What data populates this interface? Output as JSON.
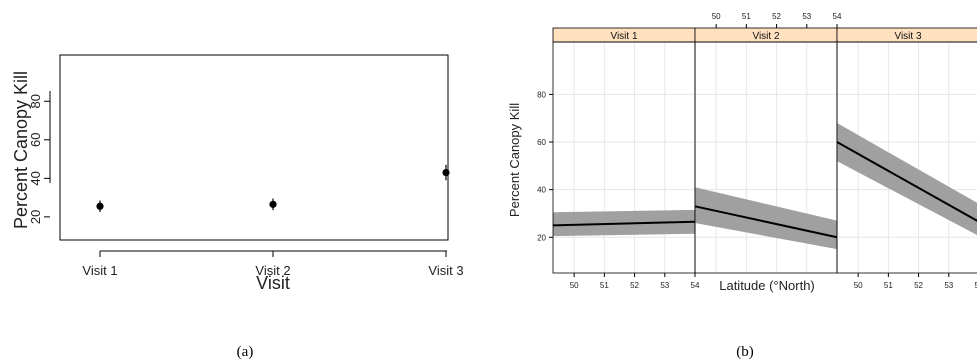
{
  "panel_labels": {
    "a": "(a)",
    "b": "(b)"
  },
  "chart_data": [
    {
      "type": "scatter",
      "panel": "a",
      "title": "",
      "xlabel": "Visit",
      "ylabel": "Percent Canopy Kill",
      "categories": [
        "Visit 1",
        "Visit 2",
        "Visit 3"
      ],
      "values": [
        25.5,
        26.5,
        43
      ],
      "error_low": [
        22.5,
        23.5,
        39
      ],
      "error_high": [
        28.5,
        29.5,
        47
      ],
      "yticks": [
        20,
        40,
        60,
        80
      ],
      "ylim": [
        8,
        104
      ],
      "grid": false
    },
    {
      "type": "line",
      "panel": "b",
      "title": "",
      "xlabel": "Latitude (°North)",
      "ylabel": "Percent Canopy Kill",
      "xlim": [
        49.3,
        54.0
      ],
      "ylim": [
        5,
        102
      ],
      "xticks": [
        50,
        51,
        52,
        53,
        54
      ],
      "yticks": [
        20,
        40,
        60,
        80
      ],
      "grid": true,
      "series": [
        {
          "name": "Visit 1",
          "x": [
            49.3,
            54.0
          ],
          "y": [
            25,
            26.5
          ],
          "lower": [
            20.5,
            21.5
          ],
          "upper": [
            30.5,
            31.5
          ]
        },
        {
          "name": "Visit 2",
          "x": [
            49.3,
            54.0
          ],
          "y": [
            33,
            20
          ],
          "lower": [
            26,
            15
          ],
          "upper": [
            41,
            27
          ]
        },
        {
          "name": "Visit 3",
          "x": [
            49.3,
            54.0
          ],
          "y": [
            60,
            26.5
          ],
          "lower": [
            52,
            20.5
          ],
          "upper": [
            68,
            34
          ]
        }
      ]
    }
  ]
}
